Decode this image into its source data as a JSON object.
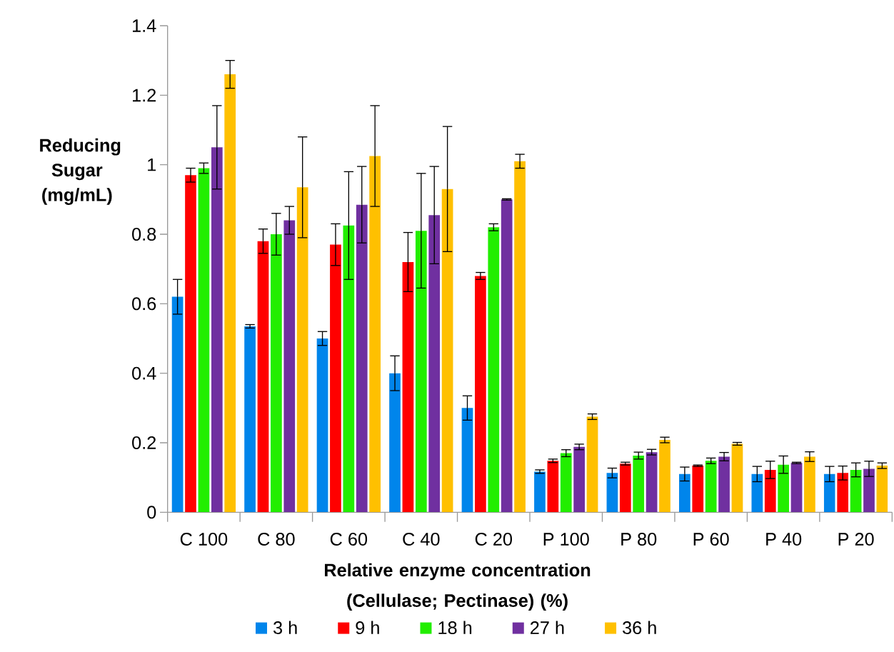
{
  "chart_data": {
    "type": "bar",
    "xlabel": "Relative enzyme concentration (Cellulase; Pectinase) (%)",
    "ylabel": "Reducing Sugar (mg/mL)",
    "categories": [
      "C 100",
      "C 80",
      "C 60",
      "C 40",
      "C 20",
      "P 100",
      "P 80",
      "P 60",
      "P 40",
      "P 20"
    ],
    "ylim": [
      0,
      1.4
    ],
    "yticks": [
      0,
      0.2,
      0.4,
      0.6,
      0.8,
      1,
      1.2,
      1.4
    ],
    "grid": false,
    "legend": "bottom",
    "series": [
      {
        "name": "3 h",
        "color": "#0085eb",
        "values": [
          0.62,
          0.535,
          0.5,
          0.4,
          0.3,
          0.117,
          0.113,
          0.11,
          0.11,
          0.11
        ],
        "errors": [
          0.05,
          0.005,
          0.02,
          0.05,
          0.035,
          0.005,
          0.014,
          0.02,
          0.022,
          0.022
        ]
      },
      {
        "name": "9 h",
        "color": "#ff0000",
        "values": [
          0.97,
          0.78,
          0.77,
          0.72,
          0.68,
          0.148,
          0.14,
          0.134,
          0.122,
          0.113
        ],
        "errors": [
          0.02,
          0.035,
          0.06,
          0.085,
          0.01,
          0.005,
          0.004,
          0.002,
          0.025,
          0.02
        ]
      },
      {
        "name": "18 h",
        "color": "#22ee00",
        "values": [
          0.99,
          0.8,
          0.825,
          0.81,
          0.82,
          0.17,
          0.163,
          0.148,
          0.137,
          0.122
        ],
        "errors": [
          0.015,
          0.06,
          0.155,
          0.165,
          0.01,
          0.01,
          0.01,
          0.008,
          0.025,
          0.02
        ]
      },
      {
        "name": "27 h",
        "color": "#7030a0",
        "values": [
          1.05,
          0.84,
          0.885,
          0.855,
          0.9,
          0.188,
          0.173,
          0.16,
          0.142,
          0.125
        ],
        "errors": [
          0.12,
          0.04,
          0.11,
          0.14,
          0.002,
          0.008,
          0.008,
          0.012,
          0.002,
          0.022
        ]
      },
      {
        "name": "36 h",
        "color": "#ffc000",
        "values": [
          1.26,
          0.935,
          1.025,
          0.93,
          1.01,
          0.275,
          0.208,
          0.197,
          0.16,
          0.134
        ],
        "errors": [
          0.04,
          0.145,
          0.145,
          0.18,
          0.02,
          0.008,
          0.008,
          0.004,
          0.014,
          0.008
        ]
      }
    ]
  }
}
